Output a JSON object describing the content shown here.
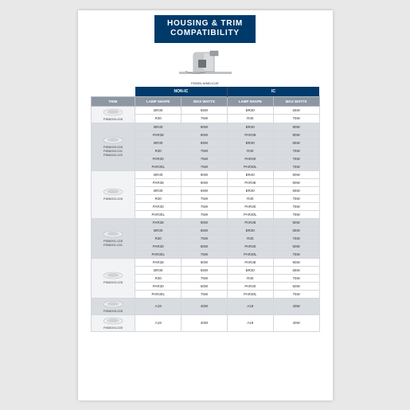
{
  "title": {
    "l1": "HOUSING & TRIM",
    "l2": "COMPATIBILITY"
  },
  "hero_caption": "PD6SN-N/MD-ICAT",
  "supercols": {
    "nonic": "NON-IC",
    "ic": "IC"
  },
  "headers": {
    "trim": "TRIM",
    "lamp": "LAMP SHAPE",
    "watts": "MAX WATTS"
  },
  "groups": [
    {
      "alt": false,
      "trim_labels": [
        "P806000-028"
      ],
      "rows": [
        {
          "lamp1": "BR30",
          "w1": "65W",
          "lamp2": "BR30",
          "w2": "65W"
        },
        {
          "lamp1": "R30",
          "w1": "75W",
          "lamp2": "R30",
          "w2": "75W"
        }
      ]
    },
    {
      "alt": true,
      "trim_labels": [
        "P806000-028",
        "P806000-031",
        "P806000-020"
      ],
      "rows": [
        {
          "lamp1": "BR40",
          "w1": "90W",
          "lamp2": "BR40",
          "w2": "90W"
        },
        {
          "lamp1": "PAR38",
          "w1": "90W",
          "lamp2": "PAR38",
          "w2": "90W"
        },
        {
          "lamp1": "BR30",
          "w1": "65W",
          "lamp2": "BR30",
          "w2": "65W"
        },
        {
          "lamp1": "R30",
          "w1": "75W",
          "lamp2": "R30",
          "w2": "75W"
        },
        {
          "lamp1": "PAR30",
          "w1": "75W",
          "lamp2": "PAR30",
          "w2": "75W"
        },
        {
          "lamp1": "PAR30L",
          "w1": "75W",
          "lamp2": "PAR30L",
          "w2": "75W"
        }
      ]
    },
    {
      "alt": false,
      "trim_labels": [
        "P806002-028"
      ],
      "rows": [
        {
          "lamp1": "BR40",
          "w1": "90W",
          "lamp2": "BR40",
          "w2": "90W"
        },
        {
          "lamp1": "PAR38",
          "w1": "90W",
          "lamp2": "PAR38",
          "w2": "90W"
        },
        {
          "lamp1": "BR30",
          "w1": "65W",
          "lamp2": "BR30",
          "w2": "65W"
        },
        {
          "lamp1": "R30",
          "w1": "75W",
          "lamp2": "R30",
          "w2": "75W"
        },
        {
          "lamp1": "PAR30",
          "w1": "75W",
          "lamp2": "PAR30",
          "w2": "75W"
        },
        {
          "lamp1": "PAR30L",
          "w1": "75W",
          "lamp2": "PAR30L",
          "w2": "75W"
        }
      ]
    },
    {
      "alt": true,
      "trim_labels": [
        "P806001-028",
        "P806001-031"
      ],
      "rows": [
        {
          "lamp1": "PAR38",
          "w1": "90W",
          "lamp2": "PAR38",
          "w2": "90W"
        },
        {
          "lamp1": "BR30",
          "w1": "65W",
          "lamp2": "BR30",
          "w2": "65W"
        },
        {
          "lamp1": "R30",
          "w1": "75W",
          "lamp2": "R30",
          "w2": "75W"
        },
        {
          "lamp1": "PAR30",
          "w1": "50W",
          "lamp2": "PAR30",
          "w2": "50W"
        },
        {
          "lamp1": "PAR30L",
          "w1": "75W",
          "lamp2": "PAR30L",
          "w2": "75W"
        }
      ]
    },
    {
      "alt": false,
      "trim_labels": [
        "P806003-028"
      ],
      "rows": [
        {
          "lamp1": "PAR38",
          "w1": "90W",
          "lamp2": "PAR38",
          "w2": "90W"
        },
        {
          "lamp1": "BR30",
          "w1": "65W",
          "lamp2": "BR30",
          "w2": "65W"
        },
        {
          "lamp1": "R30",
          "w1": "75W",
          "lamp2": "R30",
          "w2": "75W"
        },
        {
          "lamp1": "PAR30",
          "w1": "50W",
          "lamp2": "PAR30",
          "w2": "50W"
        },
        {
          "lamp1": "PAR30L",
          "w1": "75W",
          "lamp2": "PAR30L",
          "w2": "75W"
        }
      ]
    },
    {
      "alt": true,
      "trim_labels": [
        "P806005-028"
      ],
      "rows": [
        {
          "lamp1": "A19",
          "w1": "40W",
          "lamp2": "A19",
          "w2": "40W"
        }
      ]
    },
    {
      "alt": false,
      "trim_labels": [
        "P806004-028"
      ],
      "rows": [
        {
          "lamp1": "A19",
          "w1": "40W",
          "lamp2": "A19",
          "w2": "40W"
        }
      ]
    }
  ]
}
